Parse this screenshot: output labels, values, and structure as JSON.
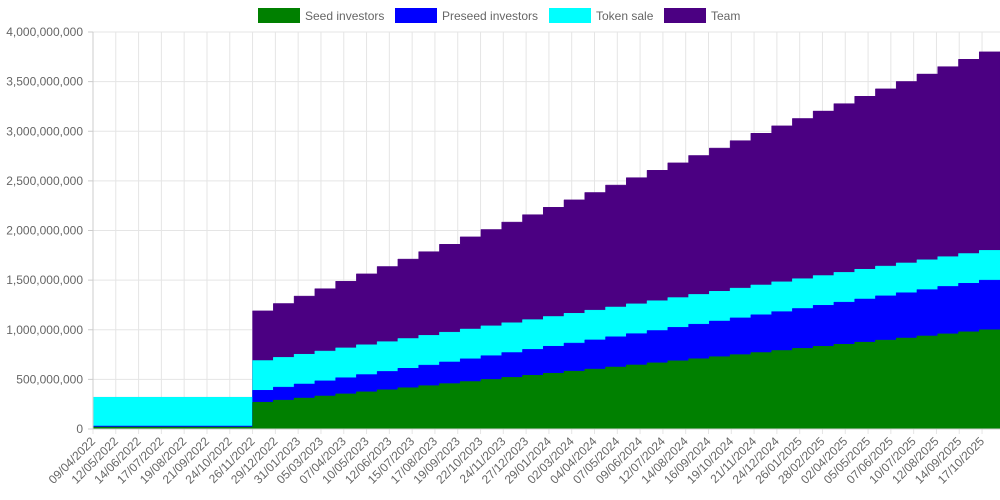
{
  "chart_data": {
    "type": "area",
    "stacked": true,
    "stepped": true,
    "title": "",
    "xlabel": "",
    "ylabel": "",
    "ylim": [
      0,
      4000000000
    ],
    "y_ticks": [
      0,
      500000000,
      1000000000,
      1500000000,
      2000000000,
      2500000000,
      3000000000,
      3500000000,
      4000000000
    ],
    "y_tick_labels": [
      "0",
      "500,000,000",
      "1,000,000,000",
      "1,500,000,000",
      "2,000,000,000",
      "2,500,000,000",
      "3,000,000,000",
      "3,500,000,000",
      "4,000,000,000"
    ],
    "grid": true,
    "legend_position": "top",
    "x_tick_labels": [
      "09/04/2022",
      "12/05/2022",
      "14/06/2022",
      "17/07/2022",
      "19/08/2022",
      "21/09/2022",
      "24/10/2022",
      "26/11/2022",
      "29/12/2022",
      "31/01/2023",
      "05/03/2023",
      "07/04/2023",
      "10/05/2023",
      "12/06/2023",
      "15/07/2023",
      "17/08/2023",
      "19/09/2023",
      "22/10/2023",
      "24/11/2023",
      "27/12/2023",
      "29/01/2024",
      "02/03/2024",
      "04/04/2024",
      "07/05/2024",
      "09/06/2024",
      "12/07/2024",
      "14/08/2024",
      "16/09/2024",
      "19/10/2024",
      "21/11/2024",
      "24/12/2024",
      "26/01/2025",
      "28/02/2025",
      "02/04/2025",
      "05/05/2025",
      "07/06/2025",
      "10/07/2025",
      "12/08/2025",
      "14/09/2025",
      "17/10/2025"
    ],
    "schedule": [
      {
        "from": "09/04/2022",
        "to": "26/11/2022",
        "Seed investors": 20000000,
        "Preseed investors": 10000000,
        "Token sale": 290000000,
        "Team": 0
      },
      {
        "from": "26/11/2022",
        "to": "17/10/2025",
        "per_month_from_start_to_end": true
      },
      {
        "series_start": {
          "Seed investors": 270000000,
          "Preseed investors": 120000000,
          "Token sale": 300000000,
          "Team": 500000000
        }
      },
      {
        "series_end": {
          "Seed investors": 1000000000,
          "Preseed investors": 500000000,
          "Token sale": 300000000,
          "Team": 2000000000
        }
      }
    ],
    "steps": 36,
    "series": [
      {
        "name": "Seed investors",
        "color": "#008000"
      },
      {
        "name": "Preseed investors",
        "color": "#0000ff"
      },
      {
        "name": "Token sale",
        "color": "#00ffff"
      },
      {
        "name": "Team",
        "color": "#4b0082"
      }
    ]
  }
}
